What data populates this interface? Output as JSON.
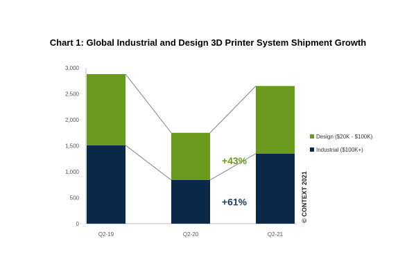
{
  "chart_data": {
    "type": "bar",
    "stacked": true,
    "title": "Chart 1: Global Industrial and Design 3D Printer System Shipment Growth",
    "categories": [
      "Q2-19",
      "Q2-20",
      "Q2-21"
    ],
    "series": [
      {
        "name": "Industrial ($100K+)",
        "values": [
          1510,
          840,
          1350
        ],
        "color": "#0b2a4a"
      },
      {
        "name": "Design ($20K - $100K)",
        "values": [
          1370,
          910,
          1300
        ],
        "color": "#6b9a1f"
      }
    ],
    "ylim": [
      0,
      3000
    ],
    "yticks": [
      "0",
      "500",
      "1,000",
      "1,500",
      "2,000",
      "2,500",
      "3,000"
    ],
    "legend_position": "right",
    "grid": false,
    "connector_lines": true,
    "annotations": [
      {
        "text": "+43%",
        "color": "#6b9a1f"
      },
      {
        "text": "+61%",
        "color": "#1f3f66"
      }
    ],
    "copyright": "© CONTEXT 2021"
  }
}
